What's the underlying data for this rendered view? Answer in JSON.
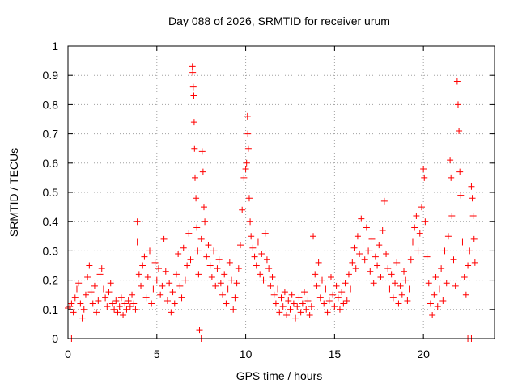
{
  "chart_data": {
    "type": "scatter",
    "title": "Day 088 of 2026, SRMTID for receiver urum",
    "xlabel": "GPS time / hours",
    "ylabel": "SRMTID / TECUs",
    "xlim": [
      0,
      24
    ],
    "ylim": [
      0,
      1
    ],
    "xticks": [
      0,
      5,
      10,
      15,
      20
    ],
    "xtick_labels": [
      "0",
      "5",
      "10",
      "15",
      "20"
    ],
    "yticks": [
      0,
      0.1,
      0.2,
      0.3,
      0.4,
      0.5,
      0.6,
      0.7,
      0.8,
      0.9,
      1
    ],
    "ytick_labels": [
      "0",
      "0.1",
      "0.2",
      "0.3",
      "0.4",
      "0.5",
      "0.6",
      "0.7",
      "0.8",
      "0.9",
      "1"
    ],
    "grid": true,
    "marker": "+",
    "series": [
      {
        "name": "SRMTID",
        "color": "#ff0000",
        "points": [
          [
            0.0,
            0.105
          ],
          [
            0.1,
            0.11
          ],
          [
            0.2,
            0.12
          ],
          [
            0.3,
            0.09
          ],
          [
            0.4,
            0.14
          ],
          [
            0.5,
            0.17
          ],
          [
            0.6,
            0.19
          ],
          [
            0.7,
            0.12
          ],
          [
            0.8,
            0.07
          ],
          [
            0.9,
            0.1
          ],
          [
            1.0,
            0.15
          ],
          [
            1.1,
            0.21
          ],
          [
            1.2,
            0.25
          ],
          [
            1.3,
            0.16
          ],
          [
            1.4,
            0.12
          ],
          [
            1.5,
            0.18
          ],
          [
            1.6,
            0.09
          ],
          [
            1.7,
            0.13
          ],
          [
            1.8,
            0.22
          ],
          [
            1.9,
            0.24
          ],
          [
            2.0,
            0.17
          ],
          [
            2.1,
            0.14
          ],
          [
            2.2,
            0.11
          ],
          [
            2.3,
            0.16
          ],
          [
            2.4,
            0.19
          ],
          [
            2.5,
            0.12
          ],
          [
            2.6,
            0.1
          ],
          [
            2.7,
            0.13
          ],
          [
            2.8,
            0.09
          ],
          [
            2.9,
            0.11
          ],
          [
            3.0,
            0.14
          ],
          [
            3.1,
            0.08
          ],
          [
            3.2,
            0.12
          ],
          [
            3.3,
            0.1
          ],
          [
            3.4,
            0.13
          ],
          [
            3.5,
            0.11
          ],
          [
            3.6,
            0.15
          ],
          [
            3.7,
            0.12
          ],
          [
            3.8,
            0.1
          ],
          [
            3.9,
            0.4
          ],
          [
            3.9,
            0.33
          ],
          [
            4.0,
            0.22
          ],
          [
            4.1,
            0.18
          ],
          [
            4.2,
            0.25
          ],
          [
            4.3,
            0.28
          ],
          [
            4.4,
            0.14
          ],
          [
            4.5,
            0.21
          ],
          [
            4.6,
            0.3
          ],
          [
            4.7,
            0.12
          ],
          [
            4.8,
            0.17
          ],
          [
            4.9,
            0.26
          ],
          [
            5.0,
            0.2
          ],
          [
            5.1,
            0.24
          ],
          [
            5.2,
            0.15
          ],
          [
            5.3,
            0.18
          ],
          [
            5.4,
            0.34
          ],
          [
            5.5,
            0.23
          ],
          [
            5.6,
            0.13
          ],
          [
            5.7,
            0.19
          ],
          [
            5.8,
            0.09
          ],
          [
            5.9,
            0.16
          ],
          [
            6.0,
            0.12
          ],
          [
            6.1,
            0.22
          ],
          [
            6.2,
            0.29
          ],
          [
            6.3,
            0.18
          ],
          [
            6.4,
            0.14
          ],
          [
            6.5,
            0.31
          ],
          [
            6.6,
            0.2
          ],
          [
            6.7,
            0.25
          ],
          [
            6.8,
            0.36
          ],
          [
            6.9,
            0.27
          ],
          [
            7.0,
            0.93
          ],
          [
            7.02,
            0.91
          ],
          [
            7.05,
            0.86
          ],
          [
            7.08,
            0.83
          ],
          [
            7.1,
            0.74
          ],
          [
            7.12,
            0.65
          ],
          [
            7.15,
            0.55
          ],
          [
            7.2,
            0.48
          ],
          [
            7.25,
            0.38
          ],
          [
            7.3,
            0.3
          ],
          [
            7.35,
            0.22
          ],
          [
            7.4,
            0.03
          ],
          [
            7.5,
            0.34
          ],
          [
            7.55,
            0.64
          ],
          [
            7.6,
            0.57
          ],
          [
            7.65,
            0.45
          ],
          [
            7.7,
            0.4
          ],
          [
            7.8,
            0.28
          ],
          [
            7.9,
            0.32
          ],
          [
            8.0,
            0.25
          ],
          [
            8.1,
            0.21
          ],
          [
            8.2,
            0.3
          ],
          [
            8.3,
            0.18
          ],
          [
            8.4,
            0.24
          ],
          [
            8.5,
            0.27
          ],
          [
            8.6,
            0.19
          ],
          [
            8.7,
            0.15
          ],
          [
            8.8,
            0.22
          ],
          [
            8.9,
            0.12
          ],
          [
            9.0,
            0.17
          ],
          [
            9.1,
            0.26
          ],
          [
            9.2,
            0.2
          ],
          [
            9.3,
            0.1
          ],
          [
            9.4,
            0.14
          ],
          [
            9.5,
            0.19
          ],
          [
            9.6,
            0.24
          ],
          [
            9.7,
            0.32
          ],
          [
            9.8,
            0.44
          ],
          [
            9.9,
            0.55
          ],
          [
            10.0,
            0.58
          ],
          [
            10.05,
            0.6
          ],
          [
            10.1,
            0.76
          ],
          [
            10.12,
            0.7
          ],
          [
            10.15,
            0.65
          ],
          [
            10.2,
            0.48
          ],
          [
            10.25,
            0.4
          ],
          [
            10.3,
            0.35
          ],
          [
            10.4,
            0.31
          ],
          [
            10.5,
            0.28
          ],
          [
            10.6,
            0.25
          ],
          [
            10.7,
            0.33
          ],
          [
            10.8,
            0.22
          ],
          [
            10.9,
            0.29
          ],
          [
            11.0,
            0.2
          ],
          [
            11.1,
            0.36
          ],
          [
            11.2,
            0.27
          ],
          [
            11.3,
            0.24
          ],
          [
            11.4,
            0.18
          ],
          [
            11.5,
            0.21
          ],
          [
            11.6,
            0.15
          ],
          [
            11.7,
            0.12
          ],
          [
            11.8,
            0.17
          ],
          [
            11.9,
            0.09
          ],
          [
            12.0,
            0.14
          ],
          [
            12.1,
            0.11
          ],
          [
            12.2,
            0.16
          ],
          [
            12.3,
            0.08
          ],
          [
            12.4,
            0.13
          ],
          [
            12.5,
            0.1
          ],
          [
            12.6,
            0.15
          ],
          [
            12.7,
            0.12
          ],
          [
            12.8,
            0.07
          ],
          [
            12.9,
            0.11
          ],
          [
            13.0,
            0.14
          ],
          [
            13.1,
            0.09
          ],
          [
            13.2,
            0.12
          ],
          [
            13.3,
            0.16
          ],
          [
            13.4,
            0.1
          ],
          [
            13.5,
            0.13
          ],
          [
            13.6,
            0.08
          ],
          [
            13.7,
            0.11
          ],
          [
            13.8,
            0.35
          ],
          [
            13.9,
            0.22
          ],
          [
            14.0,
            0.18
          ],
          [
            14.1,
            0.26
          ],
          [
            14.2,
            0.14
          ],
          [
            14.3,
            0.2
          ],
          [
            14.4,
            0.12
          ],
          [
            14.5,
            0.17
          ],
          [
            14.6,
            0.09
          ],
          [
            14.7,
            0.13
          ],
          [
            14.8,
            0.21
          ],
          [
            14.9,
            0.15
          ],
          [
            15.0,
            0.11
          ],
          [
            15.1,
            0.18
          ],
          [
            15.2,
            0.14
          ],
          [
            15.3,
            0.1
          ],
          [
            15.4,
            0.16
          ],
          [
            15.5,
            0.12
          ],
          [
            15.6,
            0.19
          ],
          [
            15.7,
            0.13
          ],
          [
            15.8,
            0.22
          ],
          [
            15.9,
            0.17
          ],
          [
            16.0,
            0.26
          ],
          [
            16.1,
            0.31
          ],
          [
            16.2,
            0.24
          ],
          [
            16.3,
            0.35
          ],
          [
            16.4,
            0.29
          ],
          [
            16.5,
            0.41
          ],
          [
            16.6,
            0.33
          ],
          [
            16.7,
            0.27
          ],
          [
            16.8,
            0.38
          ],
          [
            16.9,
            0.3
          ],
          [
            17.0,
            0.23
          ],
          [
            17.1,
            0.34
          ],
          [
            17.2,
            0.19
          ],
          [
            17.3,
            0.28
          ],
          [
            17.4,
            0.25
          ],
          [
            17.5,
            0.32
          ],
          [
            17.6,
            0.21
          ],
          [
            17.7,
            0.37
          ],
          [
            17.8,
            0.47
          ],
          [
            17.9,
            0.29
          ],
          [
            18.0,
            0.24
          ],
          [
            18.1,
            0.17
          ],
          [
            18.2,
            0.22
          ],
          [
            18.3,
            0.14
          ],
          [
            18.4,
            0.19
          ],
          [
            18.5,
            0.26
          ],
          [
            18.6,
            0.12
          ],
          [
            18.7,
            0.18
          ],
          [
            18.8,
            0.15
          ],
          [
            18.9,
            0.23
          ],
          [
            19.0,
            0.2
          ],
          [
            19.1,
            0.13
          ],
          [
            19.2,
            0.17
          ],
          [
            19.3,
            0.27
          ],
          [
            19.4,
            0.33
          ],
          [
            19.5,
            0.38
          ],
          [
            19.6,
            0.42
          ],
          [
            19.7,
            0.3
          ],
          [
            19.8,
            0.36
          ],
          [
            19.9,
            0.45
          ],
          [
            20.0,
            0.58
          ],
          [
            20.05,
            0.55
          ],
          [
            20.1,
            0.4
          ],
          [
            20.2,
            0.28
          ],
          [
            20.3,
            0.19
          ],
          [
            20.4,
            0.12
          ],
          [
            20.5,
            0.08
          ],
          [
            20.6,
            0.15
          ],
          [
            20.7,
            0.21
          ],
          [
            20.8,
            0.11
          ],
          [
            20.9,
            0.17
          ],
          [
            21.0,
            0.24
          ],
          [
            21.1,
            0.13
          ],
          [
            21.2,
            0.3
          ],
          [
            21.3,
            0.19
          ],
          [
            21.4,
            0.35
          ],
          [
            21.5,
            0.61
          ],
          [
            21.55,
            0.55
          ],
          [
            21.6,
            0.42
          ],
          [
            21.7,
            0.27
          ],
          [
            21.8,
            0.18
          ],
          [
            21.9,
            0.88
          ],
          [
            21.95,
            0.8
          ],
          [
            22.0,
            0.71
          ],
          [
            22.05,
            0.57
          ],
          [
            22.1,
            0.49
          ],
          [
            22.2,
            0.33
          ],
          [
            22.3,
            0.21
          ],
          [
            22.4,
            0.15
          ],
          [
            22.5,
            0.25
          ],
          [
            22.6,
            0.3
          ],
          [
            22.7,
            0.52
          ],
          [
            22.75,
            0.48
          ],
          [
            22.8,
            0.42
          ],
          [
            22.85,
            0.34
          ],
          [
            22.9,
            0.26
          ],
          [
            0.2,
            0.0
          ],
          [
            7.5,
            0.0
          ],
          [
            22.5,
            0.0
          ],
          [
            22.7,
            0.0
          ]
        ]
      }
    ]
  }
}
